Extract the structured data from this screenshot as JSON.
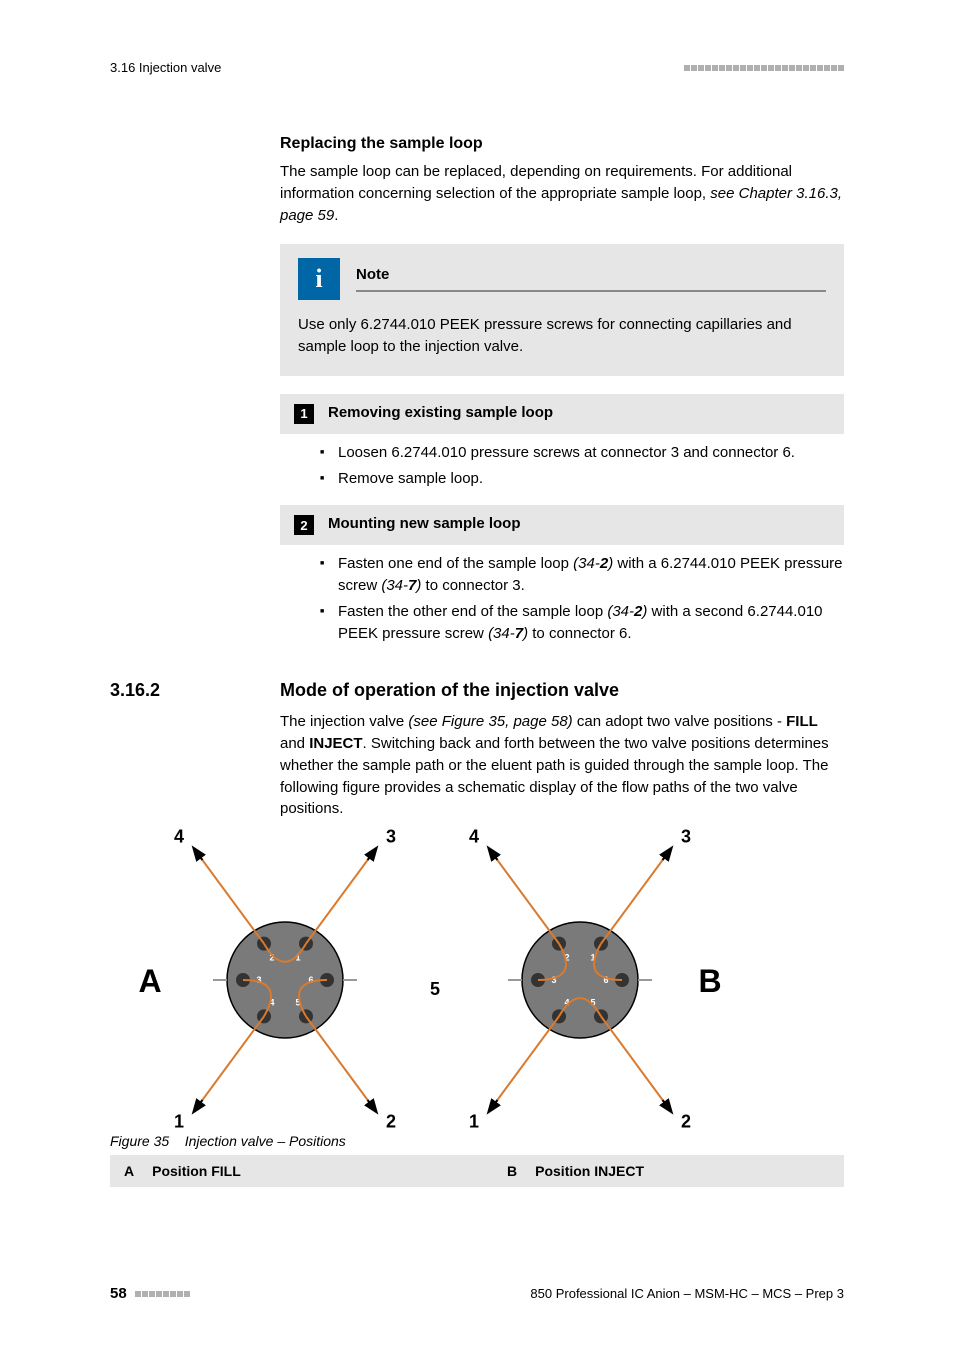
{
  "header": {
    "section_ref": "3.16 Injection valve"
  },
  "replacing_loop": {
    "heading": "Replacing the sample loop",
    "para_plain": "The sample loop can be replaced, depending on requirements. For additional information concerning selection of the appropriate sample loop, ",
    "para_ref": "see Chapter 3.16.3, page 59",
    "para_end": "."
  },
  "note": {
    "label": "Note",
    "body": "Use only 6.2744.010 PEEK pressure screws for connecting capillaries and sample loop to the injection valve."
  },
  "step1": {
    "num": "1",
    "title": "Removing existing sample loop",
    "bullets": [
      "Loosen 6.2744.010 pressure screws at connector 3 and connector 6.",
      "Remove sample loop."
    ]
  },
  "step2": {
    "num": "2",
    "title": "Mounting new sample loop",
    "bullet1_a": "Fasten one end of the sample loop ",
    "bullet1_ref1": "(34-",
    "bullet1_ref1b": "2",
    "bullet1_ref1c": ")",
    "bullet1_b": " with a 6.2744.010 PEEK pressure screw ",
    "bullet1_ref2": "(34-",
    "bullet1_ref2b": "7",
    "bullet1_ref2c": ")",
    "bullet1_c": " to connector 3.",
    "bullet2_a": "Fasten the other end of the sample loop ",
    "bullet2_ref1": "(34-",
    "bullet2_ref1b": "2",
    "bullet2_ref1c": ")",
    "bullet2_b": " with a second 6.2744.010 PEEK pressure screw ",
    "bullet2_ref2": "(34-",
    "bullet2_ref2b": "7",
    "bullet2_ref2c": ")",
    "bullet2_c": " to connector 6."
  },
  "section": {
    "num": "3.16.2",
    "title": "Mode of operation of the injection valve",
    "para_a": "The injection valve ",
    "para_ref": "(see Figure 35, page 58)",
    "para_b": " can adopt two valve positions - ",
    "fill": "FILL",
    "and": " and ",
    "inject": "INJECT",
    "para_c": ". Switching back and forth between the two valve positions determines whether the sample path or the eluent path is guided through the sample loop. The following figure provides a schematic display of the flow paths of the two valve positions."
  },
  "figure": {
    "type": "flowchart",
    "caption_num": "Figure 35",
    "caption_text": "Injection valve – Positions",
    "legend": {
      "a_key": "A",
      "a_val": "Position FILL",
      "b_key": "B",
      "b_val": "Position INJECT"
    },
    "colors": {
      "valve_fill": "#7a7a7a",
      "valve_stroke": "#000000",
      "orange_line": "#d97a2e",
      "black_line": "#000000",
      "arrow_fill": "#000000",
      "background": "#ffffff",
      "dot_fill": "#333333"
    },
    "outer_labels": [
      "1",
      "2",
      "3",
      "4",
      "5"
    ],
    "inner_ports": [
      "1",
      "2",
      "3",
      "4",
      "5",
      "6"
    ],
    "side_labels": {
      "left": "A",
      "right": "B"
    },
    "line_width": 2,
    "valve_radius": 58,
    "port_radius": 7,
    "label_font_size": 18,
    "side_label_font_size": 32
  },
  "footer": {
    "page": "58",
    "doc": "850 Professional IC Anion – MSM-HC – MCS – Prep 3"
  }
}
